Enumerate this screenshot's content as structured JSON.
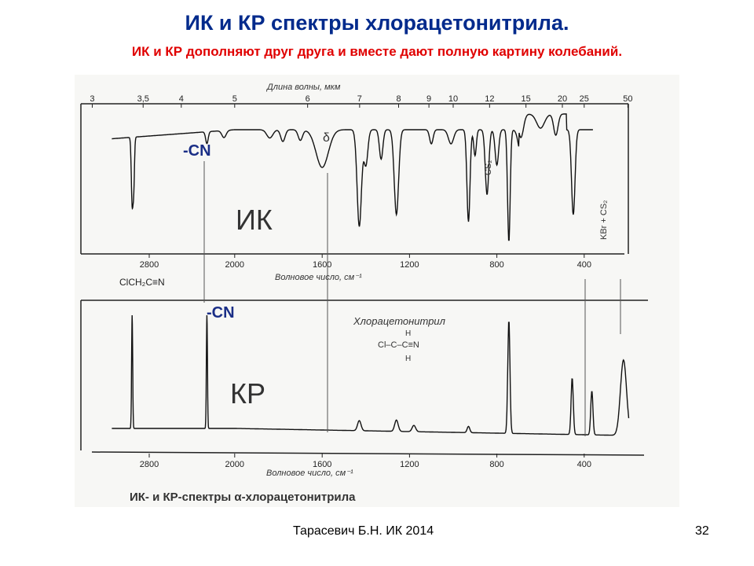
{
  "slide": {
    "title": "ИК и КР спектры хлорацетонитрила.",
    "subtitle": "ИК и КР дополняют друг друга и вместе дают полную картину колебаний.",
    "footer_author": "Тарасевич Б.Н.  ИК 2014",
    "page_number": "32"
  },
  "chart_data": [
    {
      "type": "line",
      "panel": "IR",
      "label": "ИК",
      "group_annotation": "-CN",
      "compound_label": "ClCH₂C≡N",
      "x_wavenumber_ticks": [
        2800,
        2000,
        1600,
        1200,
        800,
        400
      ],
      "x_wavenumber_tick_labels": [
        "2800",
        "2000",
        "1600",
        "1200",
        "800",
        "400"
      ],
      "xlabel": "Волновое число, см⁻¹",
      "top_axis_label": "Длина волны, мкм",
      "wavelength_ticks": [
        3,
        3.5,
        4,
        5,
        6,
        7,
        8,
        9,
        10,
        12,
        15,
        20,
        25,
        50
      ],
      "wavelength_tick_labels": [
        "3",
        "3,5",
        "4",
        "5",
        "6",
        "7",
        "8",
        "9",
        "10",
        "12",
        "15",
        "20",
        "25",
        "50"
      ],
      "annotations": [
        "CS₂",
        "KBr + CS₂",
        "δ"
      ],
      "peaks_wavenumber": [
        2950,
        2260,
        1430,
        1330,
        1260,
        1100,
        920,
        845,
        750,
        660,
        360
      ],
      "y_meaning": "transmittance (bands point down)"
    },
    {
      "type": "line",
      "panel": "Raman",
      "label": "КР",
      "group_annotation": "-CN",
      "structure_title": "Хлорацетонитрил",
      "structure_formula": "Cl–C–C≡N",
      "structure_h": "H",
      "x_wavenumber_ticks": [
        2800,
        2000,
        1600,
        1200,
        800,
        400
      ],
      "x_wavenumber_tick_labels": [
        "2800",
        "2000",
        "1600",
        "1200",
        "800",
        "400"
      ],
      "xlabel": "Волновое число, см⁻¹",
      "caption": "ИК- и КР-спектры α-хлорацетонитрила",
      "peaks_wavenumber": [
        2950,
        2260,
        1430,
        1330,
        1260,
        1100,
        920,
        845,
        750,
        660,
        360
      ],
      "y_meaning": "intensity (bands point up)"
    }
  ]
}
